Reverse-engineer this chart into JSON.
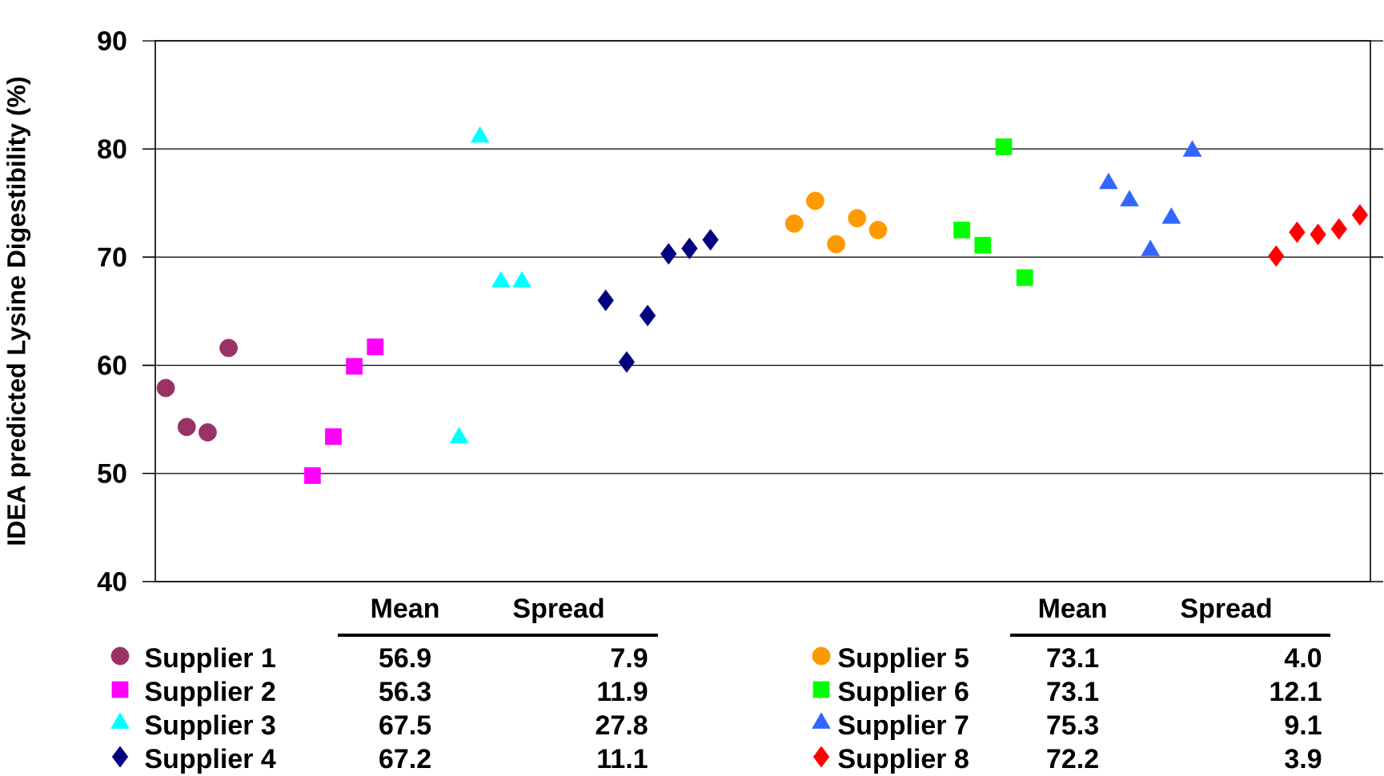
{
  "chart_data": {
    "type": "scatter",
    "ylabel": "IDEA predicted Lysine Digestibility (%)",
    "categories": [
      null,
      null,
      null,
      null,
      null,
      null,
      null,
      null,
      null,
      null,
      null,
      null,
      null,
      null,
      null,
      null,
      null,
      null,
      null,
      null,
      null,
      null,
      null,
      null,
      null,
      null,
      null,
      null,
      null,
      null,
      null,
      null,
      null,
      null,
      null,
      null,
      null,
      null,
      null,
      null,
      null,
      null,
      null,
      null,
      null,
      null,
      null,
      null,
      null,
      null,
      null,
      null,
      null,
      null,
      null,
      null,
      null,
      null
    ],
    "ylim": [
      40,
      90
    ],
    "yticks": [
      40,
      50,
      60,
      70,
      80,
      90
    ],
    "grid": "y",
    "legend": "bottom",
    "series": [
      {
        "name": "Supplier 1",
        "color": "#993366",
        "marker": "circle",
        "values": [
          57.9,
          54.3,
          53.8,
          61.6,
          null,
          null,
          null,
          null,
          null,
          null,
          null,
          null,
          null,
          null,
          null,
          null,
          null,
          null,
          null,
          null,
          null,
          null,
          null,
          null,
          null,
          null,
          null,
          null,
          null,
          null,
          null,
          null,
          null,
          null,
          null,
          null,
          null,
          null,
          null,
          null,
          null,
          null,
          null,
          null,
          null,
          null,
          null,
          null,
          null,
          null,
          null,
          null,
          null,
          null,
          null,
          null,
          null,
          null
        ]
      },
      {
        "name": "Supplier 2",
        "color": "#ff00ff",
        "marker": "square",
        "values": [
          null,
          null,
          null,
          null,
          null,
          null,
          null,
          49.8,
          53.4,
          59.9,
          61.7,
          null,
          null,
          null,
          null,
          null,
          null,
          null,
          null,
          null,
          null,
          null,
          null,
          null,
          null,
          null,
          null,
          null,
          null,
          null,
          null,
          null,
          null,
          null,
          null,
          null,
          null,
          null,
          null,
          null,
          null,
          null,
          null,
          null,
          null,
          null,
          null,
          null,
          null,
          null,
          null,
          null,
          null,
          null,
          null,
          null,
          null,
          null
        ]
      },
      {
        "name": "Supplier 3",
        "color": "#00ffff",
        "marker": "triangle",
        "values": [
          null,
          null,
          null,
          null,
          null,
          null,
          null,
          null,
          null,
          null,
          null,
          null,
          null,
          null,
          53.3,
          81.1,
          67.7,
          67.7,
          null,
          null,
          null,
          null,
          null,
          null,
          null,
          null,
          null,
          null,
          null,
          null,
          null,
          null,
          null,
          null,
          null,
          null,
          null,
          null,
          null,
          null,
          null,
          null,
          null,
          null,
          null,
          null,
          null,
          null,
          null,
          null,
          null,
          null,
          null,
          null,
          null,
          null,
          null,
          null
        ]
      },
      {
        "name": "Supplier 4",
        "color": "#000080",
        "marker": "diamond",
        "values": [
          null,
          null,
          null,
          null,
          null,
          null,
          null,
          null,
          null,
          null,
          null,
          null,
          null,
          null,
          null,
          null,
          null,
          null,
          null,
          null,
          null,
          66.0,
          60.3,
          64.6,
          70.3,
          70.8,
          71.6,
          null,
          null,
          null,
          null,
          null,
          null,
          null,
          null,
          null,
          null,
          null,
          null,
          null,
          null,
          null,
          null,
          null,
          null,
          null,
          null,
          null,
          null,
          null,
          null,
          null,
          null,
          null,
          null,
          null,
          null,
          null
        ]
      },
      {
        "name": "Supplier 5",
        "color": "#ff9900",
        "marker": "circle",
        "values": [
          null,
          null,
          null,
          null,
          null,
          null,
          null,
          null,
          null,
          null,
          null,
          null,
          null,
          null,
          null,
          null,
          null,
          null,
          null,
          null,
          null,
          null,
          null,
          null,
          null,
          null,
          null,
          null,
          null,
          null,
          73.1,
          75.2,
          71.2,
          73.6,
          72.5,
          null,
          null,
          null,
          null,
          null,
          null,
          null,
          null,
          null,
          null,
          null,
          null,
          null,
          null,
          null,
          null,
          null,
          null,
          null,
          null,
          null,
          null,
          null
        ]
      },
      {
        "name": "Supplier 6",
        "color": "#00ff00",
        "marker": "square",
        "values": [
          null,
          null,
          null,
          null,
          null,
          null,
          null,
          null,
          null,
          null,
          null,
          null,
          null,
          null,
          null,
          null,
          null,
          null,
          null,
          null,
          null,
          null,
          null,
          null,
          null,
          null,
          null,
          null,
          null,
          null,
          null,
          null,
          null,
          null,
          null,
          null,
          null,
          null,
          72.5,
          71.1,
          80.2,
          68.1,
          null,
          null,
          null,
          null,
          null,
          null,
          null,
          null,
          null,
          null,
          null,
          null,
          null,
          null,
          null,
          null
        ]
      },
      {
        "name": "Supplier 7",
        "color": "#3366ff",
        "marker": "triangle",
        "values": [
          null,
          null,
          null,
          null,
          null,
          null,
          null,
          null,
          null,
          null,
          null,
          null,
          null,
          null,
          null,
          null,
          null,
          null,
          null,
          null,
          null,
          null,
          null,
          null,
          null,
          null,
          null,
          null,
          null,
          null,
          null,
          null,
          null,
          null,
          null,
          null,
          null,
          null,
          null,
          null,
          null,
          null,
          null,
          null,
          null,
          76.8,
          75.2,
          70.6,
          73.6,
          79.8,
          null,
          null,
          null,
          null,
          null,
          null,
          null,
          null
        ]
      },
      {
        "name": "Supplier 8",
        "color": "#ff0000",
        "marker": "diamond",
        "values": [
          null,
          null,
          null,
          null,
          null,
          null,
          null,
          null,
          null,
          null,
          null,
          null,
          null,
          null,
          null,
          null,
          null,
          null,
          null,
          null,
          null,
          null,
          null,
          null,
          null,
          null,
          null,
          null,
          null,
          null,
          null,
          null,
          null,
          null,
          null,
          null,
          null,
          null,
          null,
          null,
          null,
          null,
          null,
          null,
          null,
          null,
          null,
          null,
          null,
          null,
          null,
          null,
          null,
          70.1,
          72.3,
          72.1,
          72.6,
          73.9
        ]
      }
    ],
    "annotations": [
      "Mean",
      "Spread",
      "Mean",
      "Spread",
      "56.9",
      "7.9",
      "56.3",
      "11.9",
      "67.5",
      "27.8",
      "67.2",
      "11.1",
      "73.1",
      "4.0",
      "73.1",
      "12.1",
      "75.3",
      "9.1",
      "72.2",
      "3.9"
    ]
  }
}
